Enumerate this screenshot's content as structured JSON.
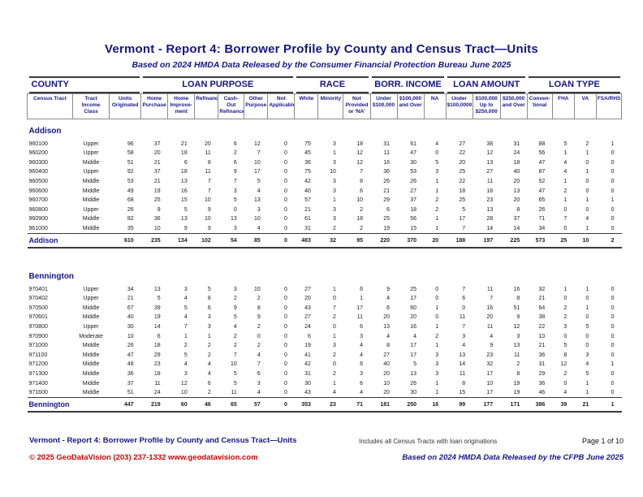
{
  "page": {
    "title": "Vermont -  Report 4: Borrower Profile by County and Census Tract—Units",
    "subtitle": "Based on 2024 HMDA Data Released by the Consumer Financial Protection Bureau June 2025"
  },
  "colors": {
    "navy": "#15158a",
    "red": "#d80000",
    "rule_dark": "#3a3a3a",
    "grid_gray": "#8a8a8a"
  },
  "table": {
    "groups": [
      {
        "label": "COUNTY",
        "span": 3,
        "align": "left"
      },
      {
        "label": "LOAN PURPOSE",
        "span": 6,
        "align": "center"
      },
      {
        "label": "RACE",
        "span": 3,
        "align": "center"
      },
      {
        "label": "BORR. INCOME",
        "span": 3,
        "align": "center"
      },
      {
        "label": "LOAN AMOUNT",
        "span": 3,
        "align": "center"
      },
      {
        "label": "LOAN TYPE",
        "span": 4,
        "align": "center"
      }
    ],
    "columns": [
      "Census Tract",
      "Tract\nIncome\nClass",
      "Units\nOriginated",
      "Home\nPurchase",
      "Home\nImprove-\nment",
      "Refinance",
      "Cash-Out\nRefinance",
      "Other\nPurpose",
      "Not\nApplicable",
      "White",
      "Minority",
      "Not\nProvided\nor 'NA'",
      "Under\n$100,000",
      "$100,000\nand Over",
      "NA",
      "Under\n$100,0000",
      "$100,000\nUp to\n$250,000",
      "$250,000\nand Over",
      "Conven-\ntional",
      "FHA",
      "VA",
      "FSA/RHS"
    ],
    "sections": [
      {
        "county": "Addison",
        "rows": [
          [
            "960100",
            "Upper",
            96,
            37,
            21,
            20,
            6,
            12,
            0,
            75,
            3,
            18,
            31,
            61,
            4,
            27,
            38,
            31,
            88,
            5,
            2,
            1
          ],
          [
            "960200",
            "Upper",
            58,
            20,
            18,
            11,
            2,
            7,
            0,
            45,
            1,
            12,
            11,
            47,
            0,
            22,
            12,
            24,
            56,
            1,
            1,
            0
          ],
          [
            "960300",
            "Middle",
            51,
            21,
            6,
            8,
            6,
            10,
            0,
            36,
            3,
            12,
            16,
            30,
            5,
            20,
            13,
            18,
            47,
            4,
            0,
            0
          ],
          [
            "960400",
            "Upper",
            92,
            37,
            18,
            11,
            9,
            17,
            0,
            75,
            10,
            7,
            36,
            53,
            3,
            25,
            27,
            40,
            87,
            4,
            1,
            0
          ],
          [
            "960500",
            "Middle",
            53,
            21,
            13,
            7,
            7,
            5,
            0,
            42,
            3,
            8,
            26,
            26,
            1,
            22,
            11,
            20,
            52,
            1,
            0,
            0
          ],
          [
            "960600",
            "Middle",
            49,
            19,
            16,
            7,
            3,
            4,
            0,
            40,
            3,
            6,
            21,
            27,
            1,
            18,
            18,
            13,
            47,
            2,
            0,
            0
          ],
          [
            "960700",
            "Middle",
            68,
            25,
            15,
            10,
            5,
            13,
            0,
            57,
            1,
            10,
            29,
            37,
            2,
            25,
            23,
            20,
            65,
            1,
            1,
            1
          ],
          [
            "960800",
            "Upper",
            26,
            9,
            5,
            9,
            0,
            3,
            0,
            21,
            3,
            2,
            6,
            18,
            2,
            5,
            13,
            8,
            26,
            0,
            0,
            0
          ],
          [
            "960900",
            "Middle",
            82,
            36,
            13,
            10,
            13,
            10,
            0,
            61,
            3,
            18,
            25,
            56,
            1,
            17,
            28,
            37,
            71,
            7,
            4,
            0
          ],
          [
            "961000",
            "Middle",
            35,
            10,
            9,
            9,
            3,
            4,
            0,
            31,
            2,
            2,
            19,
            15,
            1,
            7,
            14,
            14,
            34,
            0,
            1,
            0
          ]
        ],
        "total": [
          "Addison",
          610,
          235,
          134,
          102,
          54,
          85,
          0,
          483,
          32,
          95,
          220,
          370,
          20,
          188,
          197,
          225,
          573,
          25,
          10,
          2
        ]
      },
      {
        "county": "Bennington",
        "rows": [
          [
            "970401",
            "Upper",
            34,
            13,
            3,
            5,
            3,
            10,
            0,
            27,
            1,
            6,
            9,
            25,
            0,
            7,
            11,
            16,
            32,
            1,
            1,
            0
          ],
          [
            "970402",
            "Upper",
            21,
            5,
            4,
            8,
            2,
            2,
            0,
            20,
            0,
            1,
            4,
            17,
            0,
            6,
            7,
            8,
            21,
            0,
            0,
            0
          ],
          [
            "970500",
            "Middle",
            67,
            39,
            5,
            6,
            9,
            8,
            0,
            43,
            7,
            17,
            6,
            60,
            1,
            0,
            16,
            51,
            64,
            2,
            1,
            0
          ],
          [
            "970601",
            "Middle",
            40,
            19,
            4,
            3,
            5,
            9,
            0,
            27,
            2,
            11,
            20,
            20,
            0,
            11,
            20,
            9,
            38,
            2,
            0,
            0
          ],
          [
            "970800",
            "Upper",
            30,
            14,
            7,
            3,
            4,
            2,
            0,
            24,
            0,
            6,
            13,
            16,
            1,
            7,
            11,
            12,
            22,
            3,
            5,
            0
          ],
          [
            "970900",
            "Moderate",
            10,
            6,
            1,
            1,
            2,
            0,
            0,
            6,
            1,
            3,
            4,
            4,
            2,
            3,
            4,
            3,
            10,
            0,
            0,
            0
          ],
          [
            "971000",
            "Middle",
            26,
            18,
            2,
            2,
            2,
            2,
            0,
            19,
            3,
            4,
            8,
            17,
            1,
            4,
            9,
            13,
            21,
            5,
            0,
            0
          ],
          [
            "971100",
            "Middle",
            47,
            29,
            5,
            2,
            7,
            4,
            0,
            41,
            2,
            4,
            27,
            17,
            3,
            13,
            23,
            11,
            36,
            8,
            3,
            0
          ],
          [
            "971200",
            "Middle",
            48,
            23,
            4,
            4,
            10,
            7,
            0,
            42,
            0,
            6,
            40,
            5,
            3,
            14,
            32,
            2,
            31,
            12,
            4,
            1
          ],
          [
            "971300",
            "Middle",
            36,
            18,
            3,
            4,
            5,
            6,
            0,
            31,
            2,
            3,
            20,
            13,
            3,
            11,
            17,
            8,
            29,
            2,
            5,
            0
          ],
          [
            "971400",
            "Middle",
            37,
            11,
            12,
            6,
            5,
            3,
            0,
            30,
            1,
            6,
            10,
            26,
            1,
            8,
            10,
            19,
            36,
            0,
            1,
            0
          ],
          [
            "971600",
            "Middle",
            51,
            24,
            10,
            2,
            11,
            4,
            0,
            43,
            4,
            4,
            20,
            30,
            1,
            15,
            17,
            19,
            46,
            4,
            1,
            0
          ]
        ],
        "total": [
          "Bennington",
          447,
          219,
          60,
          46,
          65,
          57,
          0,
          353,
          23,
          71,
          181,
          250,
          16,
          99,
          177,
          171,
          386,
          39,
          21,
          1
        ]
      }
    ]
  },
  "footer": {
    "left_title": "Vermont - Report 4: Borrower Profile by County and Census Tract—Units",
    "note": "Includes all Census Tracts with loan originations",
    "page": "Page 1 of 10",
    "copyright": "© 2025 GeoDataVision   (203) 237-1332   www.geodatavision.com",
    "based_on": "Based on 2024 HMDA Data Released by the CFPB June 2025"
  }
}
